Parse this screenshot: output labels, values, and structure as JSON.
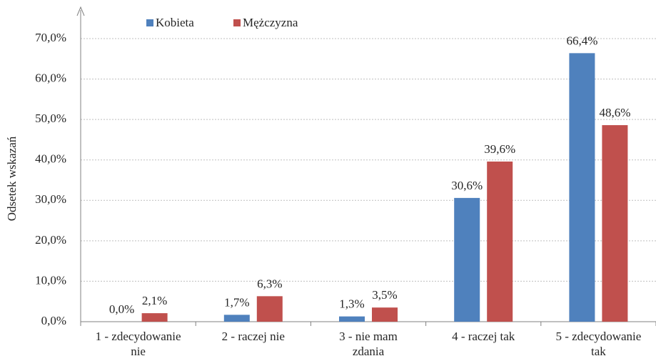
{
  "chart_data": {
    "type": "bar",
    "y_axis_label": "Odsetek wskazań",
    "categories": [
      "1 - zdecydowanie\nnie",
      "2 - raczej nie",
      "3 - nie mam\nzdania",
      "4 - raczej tak",
      "5 - zdecydowanie\ntak"
    ],
    "series": [
      {
        "name": "Kobieta",
        "color": "#4f81bd",
        "values": [
          0.0,
          1.7,
          1.3,
          30.6,
          66.4
        ],
        "value_labels": [
          "0,0%",
          "1,7%",
          "1,3%",
          "30,6%",
          "66,4%"
        ]
      },
      {
        "name": "Mężczyzna",
        "color": "#c0504d",
        "values": [
          2.1,
          6.3,
          3.5,
          39.6,
          48.6
        ],
        "value_labels": [
          "2,1%",
          "6,3%",
          "3,5%",
          "39,6%",
          "48,6%"
        ]
      }
    ],
    "ylim": [
      0,
      70
    ],
    "yticks": [
      {
        "value": 0,
        "label": "0,0%"
      },
      {
        "value": 10,
        "label": "10,0%"
      },
      {
        "value": 20,
        "label": "20,0%"
      },
      {
        "value": 30,
        "label": "30,0%"
      },
      {
        "value": 40,
        "label": "40,0%"
      },
      {
        "value": 50,
        "label": "50,0%"
      },
      {
        "value": 60,
        "label": "60,0%"
      },
      {
        "value": 70,
        "label": "70,0%"
      }
    ],
    "grid": true,
    "legend": "top"
  }
}
